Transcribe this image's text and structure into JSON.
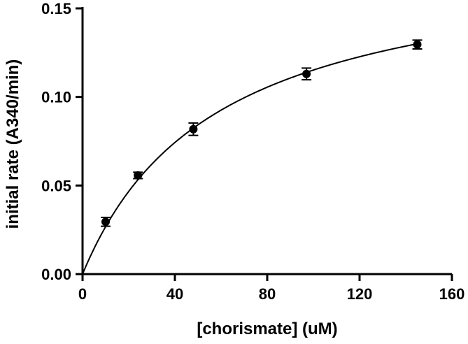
{
  "chart_data": {
    "type": "scatter",
    "title": "",
    "xlabel": "[chorismate] (uM)",
    "ylabel": "initial rate (A340/min)",
    "xlim": [
      0,
      160
    ],
    "ylim": [
      0,
      0.15
    ],
    "x_ticks": [
      0,
      40,
      80,
      120,
      160
    ],
    "y_ticks": [
      0,
      0.05,
      0.1,
      0.15
    ],
    "x_tick_labels": [
      "0",
      "40",
      "80",
      "120",
      "160"
    ],
    "y_tick_labels": [
      "0.00",
      "0.05",
      "0.10",
      "0.15"
    ],
    "grid": false,
    "legend": "none",
    "series": [
      {
        "x": [
          10,
          24,
          48,
          97,
          145
        ],
        "y": [
          0.0295,
          0.0557,
          0.0818,
          0.113,
          0.1296
        ],
        "error": [
          0.0025,
          0.0018,
          0.0035,
          0.0033,
          0.0025
        ]
      }
    ],
    "fit": {
      "model": "Michaelis-Menten",
      "vmax": 0.182,
      "km": 58
    },
    "colors": {
      "marker": "#000000",
      "line": "#000000",
      "axis": "#000000"
    }
  }
}
